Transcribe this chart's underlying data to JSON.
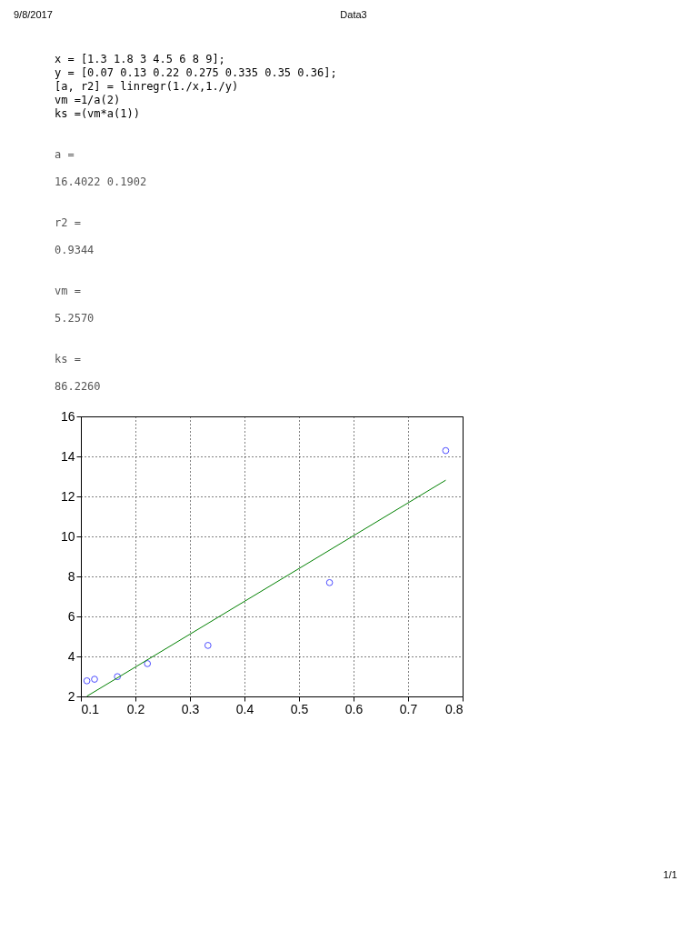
{
  "chart_data": {
    "type": "scatter",
    "annotations": [
      "9/8/2017",
      "Data3",
      "x = [1.3 1.8 3 4.5 6 8 9];",
      "y = [0.07 0.13 0.22 0.275 0.335 0.35 0.36];",
      "[a, r2] = linregr(1./x,1./y)",
      "vm =1/a(2)",
      "ks =(vm*a(1))",
      "a =",
      "   16.4022    0.1902",
      "r2 =",
      "    0.9344",
      "vm =",
      "    5.2570",
      "ks =",
      "   86.2260",
      "1/1"
    ],
    "series": [
      {
        "marker": "circle",
        "color": "#0000ff",
        "x": [
          0.769,
          0.556,
          0.333,
          0.222,
          0.167,
          0.125,
          0.111
        ],
        "values": [
          14.29,
          7.69,
          4.55,
          3.64,
          2.99,
          2.86,
          2.78
        ]
      },
      {
        "type": "line",
        "color": "#008000",
        "x": [
          0.111,
          0.769
        ],
        "values": [
          2.01,
          12.81
        ]
      }
    ],
    "xlim": [
      0.1,
      0.8
    ],
    "xticks": [
      0.1,
      0.2,
      0.3,
      0.4,
      0.5,
      0.6,
      0.7,
      0.8
    ],
    "ylim": [
      2,
      16
    ],
    "yticks": [
      2,
      4,
      6,
      8,
      10,
      12,
      14,
      16
    ],
    "grid": true,
    "line_style": "solid"
  }
}
